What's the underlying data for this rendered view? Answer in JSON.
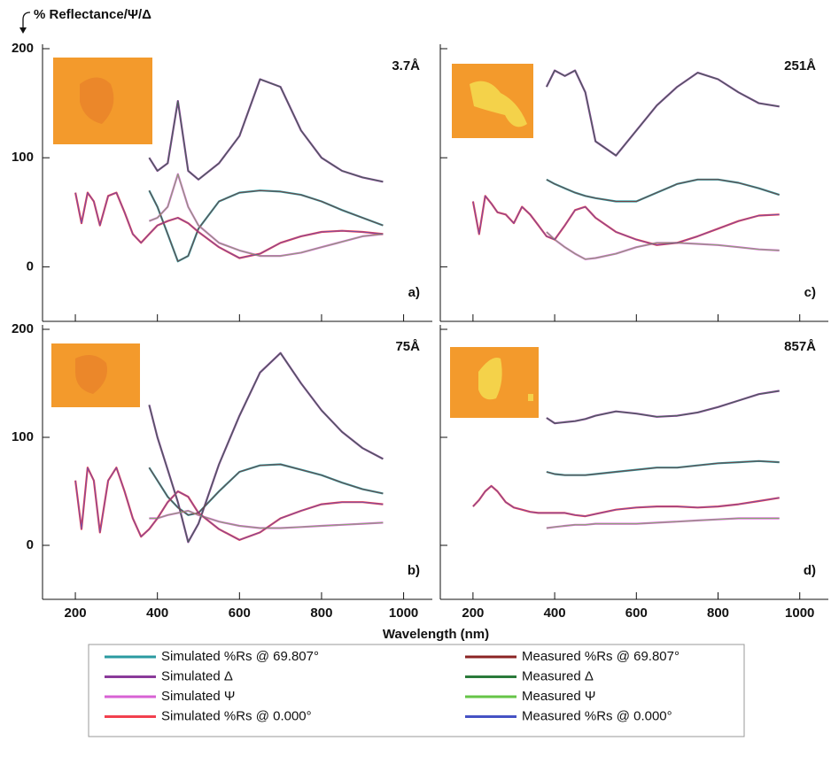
{
  "ylabel": "% Reflectance/Ψ/Δ",
  "xlabel": "Wavelength (nm)",
  "legend": [
    {
      "name": "Simulated %Rs @ 69.807°",
      "color": "#2a9aa0"
    },
    {
      "name": "Simulated Δ",
      "color": "#8a3a9a"
    },
    {
      "name": "Simulated Ψ",
      "color": "#d862d4"
    },
    {
      "name": "Simulated %Rs @ 0.000°",
      "color": "#f2404e"
    },
    {
      "name": "Measured %Rs @ 69.807°",
      "color": "#8b2424"
    },
    {
      "name": "Measured Δ",
      "color": "#2a7a3a"
    },
    {
      "name": "Measured Ψ",
      "color": "#66c447"
    },
    {
      "name": "Measured %Rs @ 0.000°",
      "color": "#4652c4"
    }
  ],
  "chart_data": [
    {
      "type": "line",
      "label": "a)",
      "annotation": "3.7Å",
      "xlim": [
        120,
        1070
      ],
      "ylim": [
        -50,
        200
      ],
      "yticks": [
        0,
        100,
        200
      ],
      "x": [
        200,
        215,
        230,
        245,
        260,
        280,
        300,
        320,
        340,
        360,
        380,
        400,
        425,
        450,
        475,
        500,
        550,
        600,
        650,
        700,
        750,
        800,
        850,
        900,
        950
      ],
      "series": [
        {
          "values": [
            null,
            null,
            null,
            null,
            null,
            null,
            null,
            null,
            null,
            null,
            70,
            55,
            30,
            5,
            10,
            35,
            60,
            68,
            70,
            69,
            66,
            60,
            52,
            45,
            38
          ]
        },
        {
          "values": [
            null,
            null,
            null,
            null,
            null,
            null,
            null,
            null,
            null,
            null,
            100,
            88,
            95,
            152,
            88,
            80,
            95,
            120,
            172,
            165,
            125,
            100,
            88,
            82,
            78
          ]
        },
        {
          "values": [
            null,
            null,
            null,
            null,
            null,
            null,
            null,
            null,
            null,
            null,
            42,
            45,
            55,
            85,
            55,
            38,
            22,
            15,
            10,
            10,
            13,
            18,
            23,
            28,
            30
          ]
        },
        {
          "values": [
            68,
            40,
            68,
            60,
            38,
            65,
            68,
            50,
            30,
            22,
            30,
            38,
            42,
            45,
            40,
            32,
            18,
            8,
            12,
            22,
            28,
            32,
            33,
            32,
            30
          ]
        },
        {
          "values": [
            null,
            null,
            null,
            null,
            null,
            null,
            null,
            null,
            null,
            null,
            70,
            55,
            30,
            5,
            10,
            35,
            60,
            68,
            70,
            69,
            66,
            60,
            52,
            45,
            38
          ]
        },
        {
          "values": [
            null,
            null,
            null,
            null,
            null,
            null,
            null,
            null,
            null,
            null,
            100,
            88,
            95,
            152,
            88,
            80,
            95,
            120,
            172,
            165,
            125,
            100,
            88,
            82,
            78
          ]
        },
        {
          "values": [
            null,
            null,
            null,
            null,
            null,
            null,
            null,
            null,
            null,
            null,
            42,
            45,
            55,
            85,
            55,
            38,
            22,
            15,
            10,
            10,
            13,
            18,
            23,
            28,
            30
          ]
        },
        {
          "values": [
            68,
            40,
            68,
            60,
            38,
            65,
            68,
            50,
            30,
            22,
            30,
            38,
            42,
            45,
            40,
            32,
            18,
            8,
            12,
            22,
            28,
            32,
            33,
            32,
            30
          ]
        }
      ]
    },
    {
      "type": "line",
      "label": "c)",
      "annotation": "251Å",
      "xlim": [
        120,
        1070
      ],
      "ylim": [
        -50,
        200
      ],
      "x": [
        200,
        215,
        230,
        245,
        260,
        280,
        300,
        320,
        340,
        360,
        380,
        400,
        425,
        450,
        475,
        500,
        550,
        600,
        650,
        700,
        750,
        800,
        850,
        900,
        950
      ],
      "series": [
        {
          "values": [
            null,
            null,
            null,
            null,
            null,
            null,
            null,
            null,
            null,
            null,
            80,
            76,
            72,
            68,
            65,
            63,
            60,
            60,
            68,
            76,
            80,
            80,
            77,
            72,
            66
          ]
        },
        {
          "values": [
            null,
            null,
            null,
            null,
            null,
            null,
            null,
            null,
            null,
            null,
            165,
            180,
            175,
            180,
            160,
            115,
            102,
            125,
            148,
            165,
            178,
            172,
            160,
            150,
            147
          ]
        },
        {
          "values": [
            null,
            null,
            null,
            null,
            null,
            null,
            null,
            null,
            null,
            null,
            32,
            25,
            18,
            12,
            7,
            8,
            12,
            18,
            22,
            22,
            21,
            20,
            18,
            16,
            15
          ]
        },
        {
          "values": [
            60,
            30,
            65,
            58,
            50,
            48,
            40,
            55,
            48,
            38,
            28,
            25,
            38,
            52,
            55,
            45,
            32,
            25,
            20,
            22,
            28,
            35,
            42,
            47,
            48
          ]
        },
        {
          "values": [
            null,
            null,
            null,
            null,
            null,
            null,
            null,
            null,
            null,
            null,
            80,
            76,
            72,
            68,
            65,
            63,
            60,
            60,
            68,
            76,
            80,
            80,
            77,
            72,
            66
          ]
        },
        {
          "values": [
            null,
            null,
            null,
            null,
            null,
            null,
            null,
            null,
            null,
            null,
            165,
            180,
            175,
            180,
            160,
            115,
            102,
            125,
            148,
            165,
            178,
            172,
            160,
            150,
            147
          ]
        },
        {
          "values": [
            null,
            null,
            null,
            null,
            null,
            null,
            null,
            null,
            null,
            null,
            32,
            25,
            18,
            12,
            7,
            8,
            12,
            18,
            22,
            22,
            21,
            20,
            18,
            16,
            15
          ]
        },
        {
          "values": [
            60,
            30,
            65,
            58,
            50,
            48,
            40,
            55,
            48,
            38,
            28,
            25,
            38,
            52,
            55,
            45,
            32,
            25,
            20,
            22,
            28,
            35,
            42,
            47,
            48
          ]
        }
      ]
    },
    {
      "type": "line",
      "label": "b)",
      "annotation": "75Å",
      "xlim": [
        120,
        1070
      ],
      "ylim": [
        -50,
        200
      ],
      "yticks": [
        0,
        100,
        200
      ],
      "xticks": [
        200,
        400,
        600,
        800,
        1000
      ],
      "x": [
        200,
        215,
        230,
        245,
        260,
        280,
        300,
        320,
        340,
        360,
        380,
        400,
        425,
        450,
        475,
        500,
        550,
        600,
        650,
        700,
        750,
        800,
        850,
        900,
        950
      ],
      "series": [
        {
          "values": [
            null,
            null,
            null,
            null,
            null,
            null,
            null,
            null,
            null,
            null,
            72,
            60,
            45,
            35,
            28,
            30,
            50,
            68,
            74,
            75,
            70,
            65,
            58,
            52,
            48
          ]
        },
        {
          "values": [
            null,
            null,
            null,
            null,
            null,
            null,
            null,
            null,
            null,
            null,
            130,
            100,
            70,
            40,
            3,
            20,
            75,
            120,
            160,
            178,
            150,
            125,
            105,
            90,
            80
          ]
        },
        {
          "values": [
            null,
            null,
            null,
            null,
            null,
            null,
            null,
            null,
            null,
            null,
            25,
            25,
            28,
            30,
            32,
            28,
            22,
            18,
            16,
            16,
            17,
            18,
            19,
            20,
            21
          ]
        },
        {
          "values": [
            60,
            15,
            72,
            60,
            12,
            60,
            72,
            50,
            25,
            8,
            15,
            25,
            40,
            50,
            45,
            30,
            15,
            5,
            12,
            25,
            32,
            38,
            40,
            40,
            38
          ]
        },
        {
          "values": [
            null,
            null,
            null,
            null,
            null,
            null,
            null,
            null,
            null,
            null,
            72,
            60,
            45,
            35,
            28,
            30,
            50,
            68,
            74,
            75,
            70,
            65,
            58,
            52,
            48
          ]
        },
        {
          "values": [
            null,
            null,
            null,
            null,
            null,
            null,
            null,
            null,
            null,
            null,
            130,
            100,
            70,
            40,
            3,
            20,
            75,
            120,
            160,
            178,
            150,
            125,
            105,
            90,
            80
          ]
        },
        {
          "values": [
            null,
            null,
            null,
            null,
            null,
            null,
            null,
            null,
            null,
            null,
            25,
            25,
            28,
            30,
            32,
            28,
            22,
            18,
            16,
            16,
            17,
            18,
            19,
            20,
            21
          ]
        },
        {
          "values": [
            60,
            15,
            72,
            60,
            12,
            60,
            72,
            50,
            25,
            8,
            15,
            25,
            40,
            50,
            45,
            30,
            15,
            5,
            12,
            25,
            32,
            38,
            40,
            40,
            38
          ]
        }
      ]
    },
    {
      "type": "line",
      "label": "d)",
      "annotation": "857Å",
      "xlim": [
        120,
        1070
      ],
      "ylim": [
        -50,
        200
      ],
      "xticks": [
        200,
        400,
        600,
        800,
        1000
      ],
      "x": [
        200,
        215,
        230,
        245,
        260,
        280,
        300,
        320,
        340,
        360,
        380,
        400,
        425,
        450,
        475,
        500,
        550,
        600,
        650,
        700,
        750,
        800,
        850,
        900,
        950
      ],
      "series": [
        {
          "values": [
            null,
            null,
            null,
            null,
            null,
            null,
            null,
            null,
            null,
            null,
            68,
            66,
            65,
            65,
            65,
            66,
            68,
            70,
            72,
            72,
            74,
            76,
            77,
            78,
            77
          ]
        },
        {
          "values": [
            null,
            null,
            null,
            null,
            null,
            null,
            null,
            null,
            null,
            null,
            118,
            113,
            114,
            115,
            117,
            120,
            124,
            122,
            119,
            120,
            123,
            128,
            134,
            140,
            143
          ]
        },
        {
          "values": [
            null,
            null,
            null,
            null,
            null,
            null,
            null,
            null,
            null,
            null,
            16,
            17,
            18,
            19,
            19,
            20,
            20,
            20,
            21,
            22,
            23,
            24,
            25,
            25,
            25
          ]
        },
        {
          "values": [
            36,
            42,
            50,
            55,
            50,
            40,
            35,
            33,
            31,
            30,
            30,
            30,
            30,
            28,
            27,
            29,
            33,
            35,
            36,
            36,
            35,
            36,
            38,
            41,
            44
          ]
        },
        {
          "values": [
            null,
            null,
            null,
            null,
            null,
            null,
            null,
            null,
            null,
            null,
            68,
            66,
            65,
            65,
            65,
            66,
            68,
            70,
            72,
            72,
            74,
            76,
            77,
            78,
            77
          ]
        },
        {
          "values": [
            null,
            null,
            null,
            null,
            null,
            null,
            null,
            null,
            null,
            null,
            118,
            113,
            114,
            115,
            117,
            120,
            124,
            122,
            119,
            120,
            123,
            128,
            134,
            140,
            143
          ]
        },
        {
          "values": [
            null,
            null,
            null,
            null,
            null,
            null,
            null,
            null,
            null,
            null,
            16,
            17,
            18,
            19,
            19,
            20,
            20,
            20,
            21,
            22,
            23,
            24,
            25,
            25,
            25
          ]
        },
        {
          "values": [
            36,
            42,
            50,
            55,
            50,
            40,
            35,
            33,
            31,
            30,
            30,
            30,
            30,
            28,
            27,
            29,
            33,
            35,
            36,
            36,
            35,
            36,
            38,
            41,
            44
          ]
        }
      ]
    }
  ]
}
